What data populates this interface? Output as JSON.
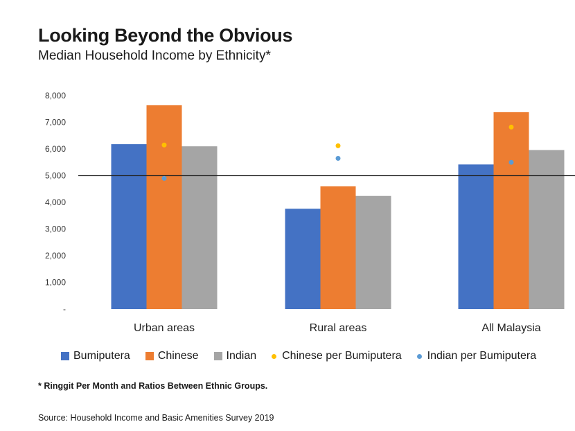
{
  "header": {
    "title": "Looking Beyond the Obvious",
    "subtitle": "Median Household Income by Ethnicity*"
  },
  "chart_data": {
    "type": "bar",
    "categories": [
      "Urban areas",
      "Rural areas",
      "All Malaysia"
    ],
    "series": [
      {
        "name": "Bumiputera",
        "kind": "bar",
        "color": "#4472C4",
        "values": [
          6180,
          3760,
          5420
        ]
      },
      {
        "name": "Chinese",
        "kind": "bar",
        "color": "#ED7D31",
        "values": [
          7640,
          4600,
          7380
        ]
      },
      {
        "name": "Indian",
        "kind": "bar",
        "color": "#A5A5A5",
        "values": [
          6100,
          4240,
          5960
        ]
      },
      {
        "name": "Chinese per Bumiputera",
        "kind": "dot",
        "color": "#FFC000",
        "values": [
          6150,
          6120,
          6820
        ]
      },
      {
        "name": "Indian per Bumiputera",
        "kind": "dot",
        "color": "#5B9BD5",
        "values": [
          4900,
          5650,
          5500
        ]
      }
    ],
    "y_ticks": [
      "-",
      "1,000",
      "2,000",
      "3,000",
      "4,000",
      "5,000",
      "6,000",
      "7,000",
      "8,000"
    ],
    "ylim": [
      0,
      8000
    ],
    "reference_line": 5000,
    "grid": false,
    "legend_position": "bottom"
  },
  "footnote": "* Ringgit Per Month and Ratios Between Ethnic Groups.",
  "source": "Source: Household Income and Basic Amenities Survey 2019"
}
